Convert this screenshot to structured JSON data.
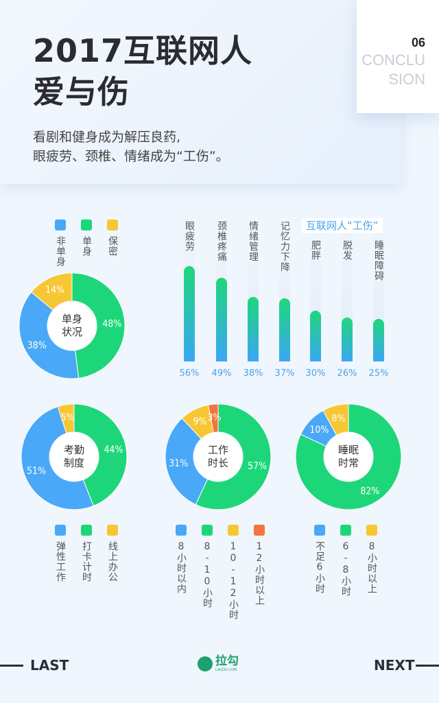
{
  "header": {
    "title_line1": "2017互联网人",
    "title_line2": "爱与伤",
    "subtitle_line1": "看剧和健身成为解压良药,",
    "subtitle_line2": "眼疲劳、颈椎、情绪成为“工伤”。",
    "section_number": "06",
    "section_word_1": "CONCLU",
    "section_word_2": "SION"
  },
  "colors": {
    "blue": "#4aa8f8",
    "green": "#1ed67a",
    "yellow": "#f7c633",
    "orange": "#f5733d"
  },
  "chart_data": [
    {
      "type": "pie",
      "title": "单身状况",
      "center_label": [
        "单身",
        "状况"
      ],
      "legend": [
        "非单身",
        "单身",
        "保密"
      ],
      "slices": [
        {
          "name": "单身",
          "value": 48,
          "label": "48%",
          "color": "green"
        },
        {
          "name": "非单身",
          "value": 38,
          "label": "38%",
          "color": "blue"
        },
        {
          "name": "保密",
          "value": 14,
          "label": "14%",
          "color": "yellow"
        }
      ]
    },
    {
      "type": "bar",
      "title": "互联网人“工伤”",
      "categories": [
        "眼疲劳",
        "颈椎疼痛",
        "情绪管理",
        "记忆力下降",
        "肥胖",
        "脱发",
        "睡眠障碍"
      ],
      "values": [
        56,
        49,
        38,
        37,
        30,
        26,
        25
      ],
      "labels": [
        "56%",
        "49%",
        "38%",
        "37%",
        "30%",
        "26%",
        "25%"
      ],
      "ylim": [
        0,
        70
      ]
    },
    {
      "type": "pie",
      "title": "考勤制度",
      "center_label": [
        "考勤",
        "制度"
      ],
      "legend": [
        "弹性工作",
        "打卡计时",
        "线上办公"
      ],
      "slices": [
        {
          "name": "打卡计时",
          "value": 44,
          "label": "44%",
          "color": "green"
        },
        {
          "name": "弹性工作",
          "value": 51,
          "label": "51%",
          "color": "blue"
        },
        {
          "name": "线上办公",
          "value": 5,
          "label": "5%",
          "color": "yellow"
        }
      ]
    },
    {
      "type": "pie",
      "title": "工作时长",
      "center_label": [
        "工作",
        "时长"
      ],
      "legend": [
        "8小时以内",
        "8-10小时",
        "10-12小时",
        "12小时以上"
      ],
      "slices": [
        {
          "name": "8-10小时",
          "value": 57,
          "label": "57%",
          "color": "green"
        },
        {
          "name": "8小时以内",
          "value": 31,
          "label": "31%",
          "color": "blue"
        },
        {
          "name": "10-12小时",
          "value": 9,
          "label": "9%",
          "color": "yellow"
        },
        {
          "name": "12小时以上",
          "value": 3,
          "label": "3%",
          "color": "orange"
        }
      ]
    },
    {
      "type": "pie",
      "title": "睡眠时常",
      "center_label": [
        "睡眠",
        "时常"
      ],
      "legend": [
        "不足6小时",
        "6-8小时",
        "8小时以上"
      ],
      "slices": [
        {
          "name": "6-8小时",
          "value": 82,
          "label": "82%",
          "color": "green"
        },
        {
          "name": "不足6小时",
          "value": 10,
          "label": "10%",
          "color": "blue"
        },
        {
          "name": "8小时以上",
          "value": 8,
          "label": "8%",
          "color": "yellow"
        }
      ]
    }
  ],
  "footer": {
    "last": "LAST",
    "next": "NEXT",
    "logo_text": "拉勾",
    "logo_sub": "LAGOU.COM"
  }
}
